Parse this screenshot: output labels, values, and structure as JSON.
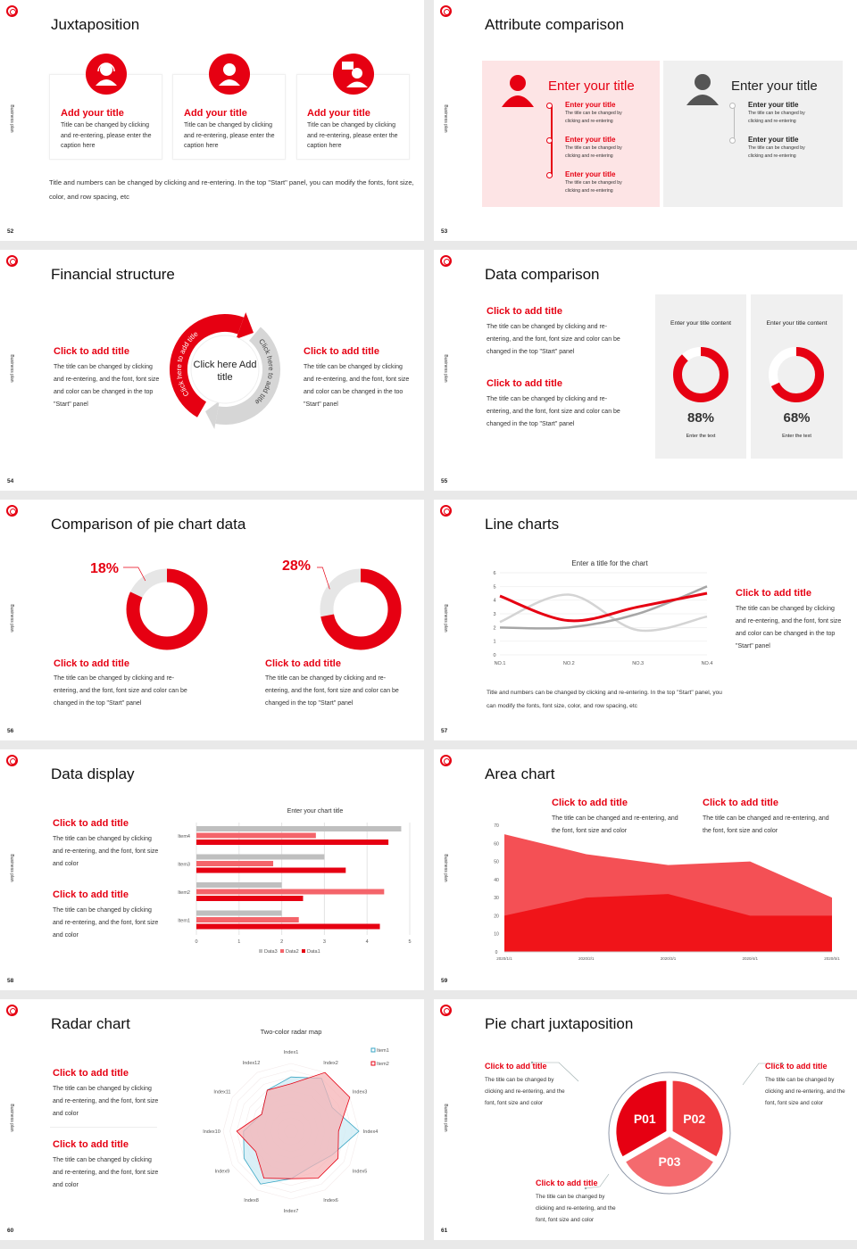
{
  "side_label": "Business plan",
  "colors": {
    "red": "#e60012",
    "red2": "#f25057",
    "pink": "#fde4e5",
    "gray": "#c8c8c8",
    "panel": "#f0f0f0"
  },
  "slides": [
    {
      "number": "52",
      "title": "Juxtaposition",
      "cards": [
        {
          "icon": "headset-person-icon",
          "title": "Add your title",
          "body": "Title can be changed by clicking and re-entering, please enter the caption here"
        },
        {
          "icon": "person-icon",
          "title": "Add your title",
          "body": "Title can be changed by clicking and re-entering, please enter the caption here"
        },
        {
          "icon": "presenter-icon",
          "title": "Add your title",
          "body": "Title can be changed by clicking and re-entering, please enter the caption here"
        }
      ],
      "footer": "Title and numbers can be changed by clicking and re-entering. In the top \"Start\" panel, you can modify the fonts, font size, color, and row spacing, etc"
    },
    {
      "number": "53",
      "title": "Attribute comparison",
      "panels": [
        {
          "heading": "Enter your title",
          "items": [
            {
              "title": "Enter your title",
              "body": "The title can be changed by clicking and re-entering"
            },
            {
              "title": "Enter your title",
              "body": "The title can be changed by clicking and re-entering"
            },
            {
              "title": "Enter your title",
              "body": "The title can be changed by clicking and re-entering"
            }
          ]
        },
        {
          "heading": "Enter your title",
          "items": [
            {
              "title": "Enter your title",
              "body": "The title can be changed by clicking and re-entering"
            },
            {
              "title": "Enter your title",
              "body": "The title can be changed by clicking and re-entering"
            }
          ]
        }
      ]
    },
    {
      "number": "54",
      "title": "Financial structure",
      "left": {
        "title": "Click to add title",
        "body": "The title can be changed by clicking and re-entering, and the font, font size and color can be changed in the top \"Start\" panel"
      },
      "right": {
        "title": "Click to add title",
        "body": "The title can be changed by clicking and re-entering, and the font, font size and color can be changed in the too \"Start\" panel"
      },
      "center": "Click here Add title",
      "arc_red": "Click here to add title",
      "arc_gray": "Click here to add title"
    },
    {
      "number": "55",
      "title": "Data comparison",
      "blocks": [
        {
          "title": "Click to add title",
          "body": "The title can be changed by clicking and re-entering, and the font, font size and color can be changed in the top \"Start\" panel"
        },
        {
          "title": "Click to add title",
          "body": "The title can be changed by clicking and re-entering, and the font, font size and color can be changed in the top \"Start\" panel"
        }
      ],
      "stats": [
        {
          "heading": "Enter your title content",
          "percent": 88,
          "value": "88%",
          "caption": "Enter the text"
        },
        {
          "heading": "Enter your title content",
          "percent": 68,
          "value": "68%",
          "caption": "Enter the text"
        }
      ]
    },
    {
      "number": "56",
      "title": "Comparison of pie chart data",
      "pies": [
        {
          "percent": 18,
          "value": "18%",
          "title": "Click to add title",
          "body": "The title can be changed by clicking and re-entering, and the font, font size and color can be changed in the top \"Start\" panel"
        },
        {
          "percent": 28,
          "value": "28%",
          "title": "Click to add title",
          "body": "The title can be changed by clicking and re-entering, and the font, font size and color can be changed in the top \"Start\" panel"
        }
      ]
    },
    {
      "number": "57",
      "title": "Line charts",
      "side": {
        "title": "Click to add title",
        "body": "The title can be changed by clicking and re-entering, and the font, font size and color can be changed in the top \"Start\" panel"
      },
      "footer": "Title and numbers can be changed by clicking and re-entering. In the top \"Start\" panel, you can modify the fonts, font size, color, and row spacing, etc"
    },
    {
      "number": "58",
      "title": "Data display",
      "blocks": [
        {
          "title": "Click to add title",
          "body": "The title can be changed by clicking and re-entering, and the font, font size and color"
        },
        {
          "title": "Click to add title",
          "body": "The title can be changed by clicking and re-entering, and the font, font size and color"
        }
      ]
    },
    {
      "number": "59",
      "title": "Area chart",
      "blocks": [
        {
          "title": "Click to add title",
          "body": "The title can be changed and re-entering, and the font, font size and color"
        },
        {
          "title": "Click to add title",
          "body": "The title can be changed and re-entering, and the font, font size and color"
        }
      ]
    },
    {
      "number": "60",
      "title": "Radar chart",
      "blocks": [
        {
          "title": "Click to add title",
          "body": "The title can be changed by clicking and re-entering, and the font, font size and color"
        },
        {
          "title": "Click to add title",
          "body": "The title can be changed by clicking and re-entering, and the font, font size and color"
        }
      ]
    },
    {
      "number": "61",
      "title": "Pie chart juxtaposition",
      "segments": [
        "P01",
        "P02",
        "P03"
      ],
      "blocks": [
        {
          "title": "Click to add title",
          "body": "The title can be changed by clicking and re-entering, and the font, font size and color"
        },
        {
          "title": "Click to add title",
          "body": "The title can be changed by clicking and re-entering, and the font, font size and color"
        },
        {
          "title": "Click to add title",
          "body": "The title can be changed by clicking and re-entering, and the font, font size and color"
        }
      ]
    }
  ],
  "chart_data": [
    {
      "type": "line",
      "title": "Enter a title for the chart",
      "categories": [
        "NO.1",
        "NO.2",
        "NO.3",
        "NO.4"
      ],
      "ylim": [
        0,
        6
      ],
      "yticks": [
        "0",
        "1",
        "2",
        "3",
        "4",
        "5",
        "6"
      ],
      "series": [
        {
          "color": "#e60012",
          "values": [
            4.3,
            2.5,
            3.5,
            4.5
          ]
        },
        {
          "color": "#d4d4d4",
          "values": [
            2.4,
            4.4,
            1.8,
            2.8
          ]
        },
        {
          "color": "#a6a6a6",
          "values": [
            2.0,
            2.0,
            3.0,
            5.0
          ]
        }
      ]
    },
    {
      "type": "bar",
      "orientation": "horizontal",
      "title": "Enter your chart title",
      "categories": [
        "Item1",
        "Item2",
        "Item3",
        "Item4"
      ],
      "xlim": [
        0,
        5
      ],
      "xticks": [
        "0",
        "1",
        "2",
        "3",
        "4",
        "5"
      ],
      "grid": true,
      "legend": "bottom",
      "series": [
        {
          "name": "Data3",
          "color": "#bfbfbf",
          "values": [
            2.0,
            2.0,
            3.0,
            4.8
          ]
        },
        {
          "name": "Data2",
          "color": "#f4646a",
          "values": [
            2.4,
            4.4,
            1.8,
            2.8
          ]
        },
        {
          "name": "Data1",
          "color": "#e60012",
          "values": [
            4.3,
            2.5,
            3.5,
            4.5
          ]
        }
      ]
    },
    {
      "type": "area",
      "categories": [
        "2020/1/1",
        "2020/2/1",
        "2020/3/1",
        "2020/4/1",
        "2020/5/1"
      ],
      "ylim": [
        0,
        70
      ],
      "yticks": [
        "0",
        "10",
        "20",
        "30",
        "40",
        "50",
        "60",
        "70"
      ],
      "series": [
        {
          "color": "#f45055",
          "values": [
            65,
            54,
            48,
            50,
            30
          ]
        },
        {
          "color": "#f01419",
          "values": [
            20,
            30,
            32,
            20,
            20
          ]
        }
      ]
    },
    {
      "type": "radar",
      "title": "Two-color radar map",
      "categories": [
        "Index1",
        "Index2",
        "Index3",
        "Index4",
        "Index5",
        "Index6",
        "Index7",
        "Index8",
        "Index9",
        "Index10",
        "Index11",
        "Index12"
      ],
      "rlim": [
        0,
        10
      ],
      "legend": "top-right",
      "series": [
        {
          "name": "Item1",
          "color": "#3aa6c4",
          "fill": "#cdebf4",
          "values": [
            8,
            9,
            7,
            10,
            7,
            6,
            7,
            9,
            8,
            7,
            5,
            7
          ]
        },
        {
          "name": "Item2",
          "color": "#e60012",
          "fill": "#f6b3b5",
          "values": [
            7,
            10,
            10,
            7,
            8,
            8,
            7,
            8,
            6,
            8,
            5,
            7
          ]
        }
      ]
    }
  ]
}
